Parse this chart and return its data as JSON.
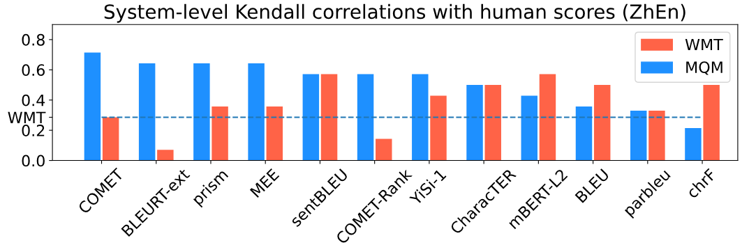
{
  "chart_data": {
    "type": "bar",
    "title": "System-level Kendall correlations with human scores (ZhEn)",
    "categories": [
      "COMET",
      "BLEURT-ext",
      "prism",
      "MEE",
      "sentBLEU",
      "COMET-Rank",
      "YiSi-1",
      "CharacTER",
      "mBERT-L2",
      "BLEU",
      "parbleu",
      "chrF"
    ],
    "series": [
      {
        "name": "MQM",
        "color": "#1e90ff",
        "values": [
          0.714,
          0.643,
          0.643,
          0.643,
          0.571,
          0.571,
          0.571,
          0.5,
          0.429,
          0.357,
          0.33,
          0.214
        ]
      },
      {
        "name": "WMT",
        "color": "#ff6347",
        "values": [
          0.286,
          0.071,
          0.357,
          0.357,
          0.571,
          0.143,
          0.429,
          0.5,
          0.571,
          0.5,
          0.33,
          0.5
        ]
      }
    ],
    "ylim": [
      0,
      0.9
    ],
    "yticks": [
      {
        "value": 0,
        "label": "0.0"
      },
      0.2,
      {
        "value": 0.286,
        "label": "WMT"
      },
      0.4,
      0.6,
      0.8
    ],
    "ref_lines": [
      {
        "axis": "y",
        "value": 0.286,
        "color": "#1f77b4",
        "line_style": "dashed"
      }
    ],
    "legend": "top right",
    "grid": false
  }
}
